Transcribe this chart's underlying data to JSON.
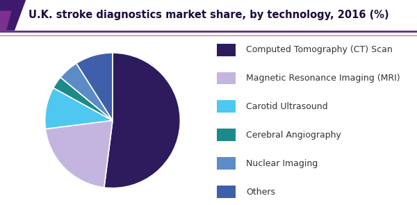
{
  "title": "U.K. stroke diagnostics market share, by technology, 2016 (%)",
  "title_color": "#1a0a3c",
  "title_fontsize": 10.5,
  "slices": [
    {
      "label": "Computed Tomography (CT) Scan",
      "value": 52,
      "color": "#2d1b5e"
    },
    {
      "label": "Magnetic Resonance Imaging (MRI)",
      "value": 21,
      "color": "#c4b5e0"
    },
    {
      "label": "Carotid Ultrasound",
      "value": 10,
      "color": "#4ec8f0"
    },
    {
      "label": "Cerebral Angiography",
      "value": 3,
      "color": "#1d8a8a"
    },
    {
      "label": "Nuclear Imaging",
      "value": 5,
      "color": "#5b8cc8"
    },
    {
      "label": "Others",
      "value": 9,
      "color": "#3f5faa"
    }
  ],
  "header_bg": "#ffffff",
  "header_line_color": "#5c2d82",
  "header_line_color2": "#c06090",
  "accent_dark": "#3d1a6e",
  "accent_light": "#7b3090",
  "background_color": "#ffffff",
  "legend_fontsize": 9,
  "startangle": 90,
  "wedge_edge_color": "#ffffff",
  "wedge_linewidth": 1.2
}
